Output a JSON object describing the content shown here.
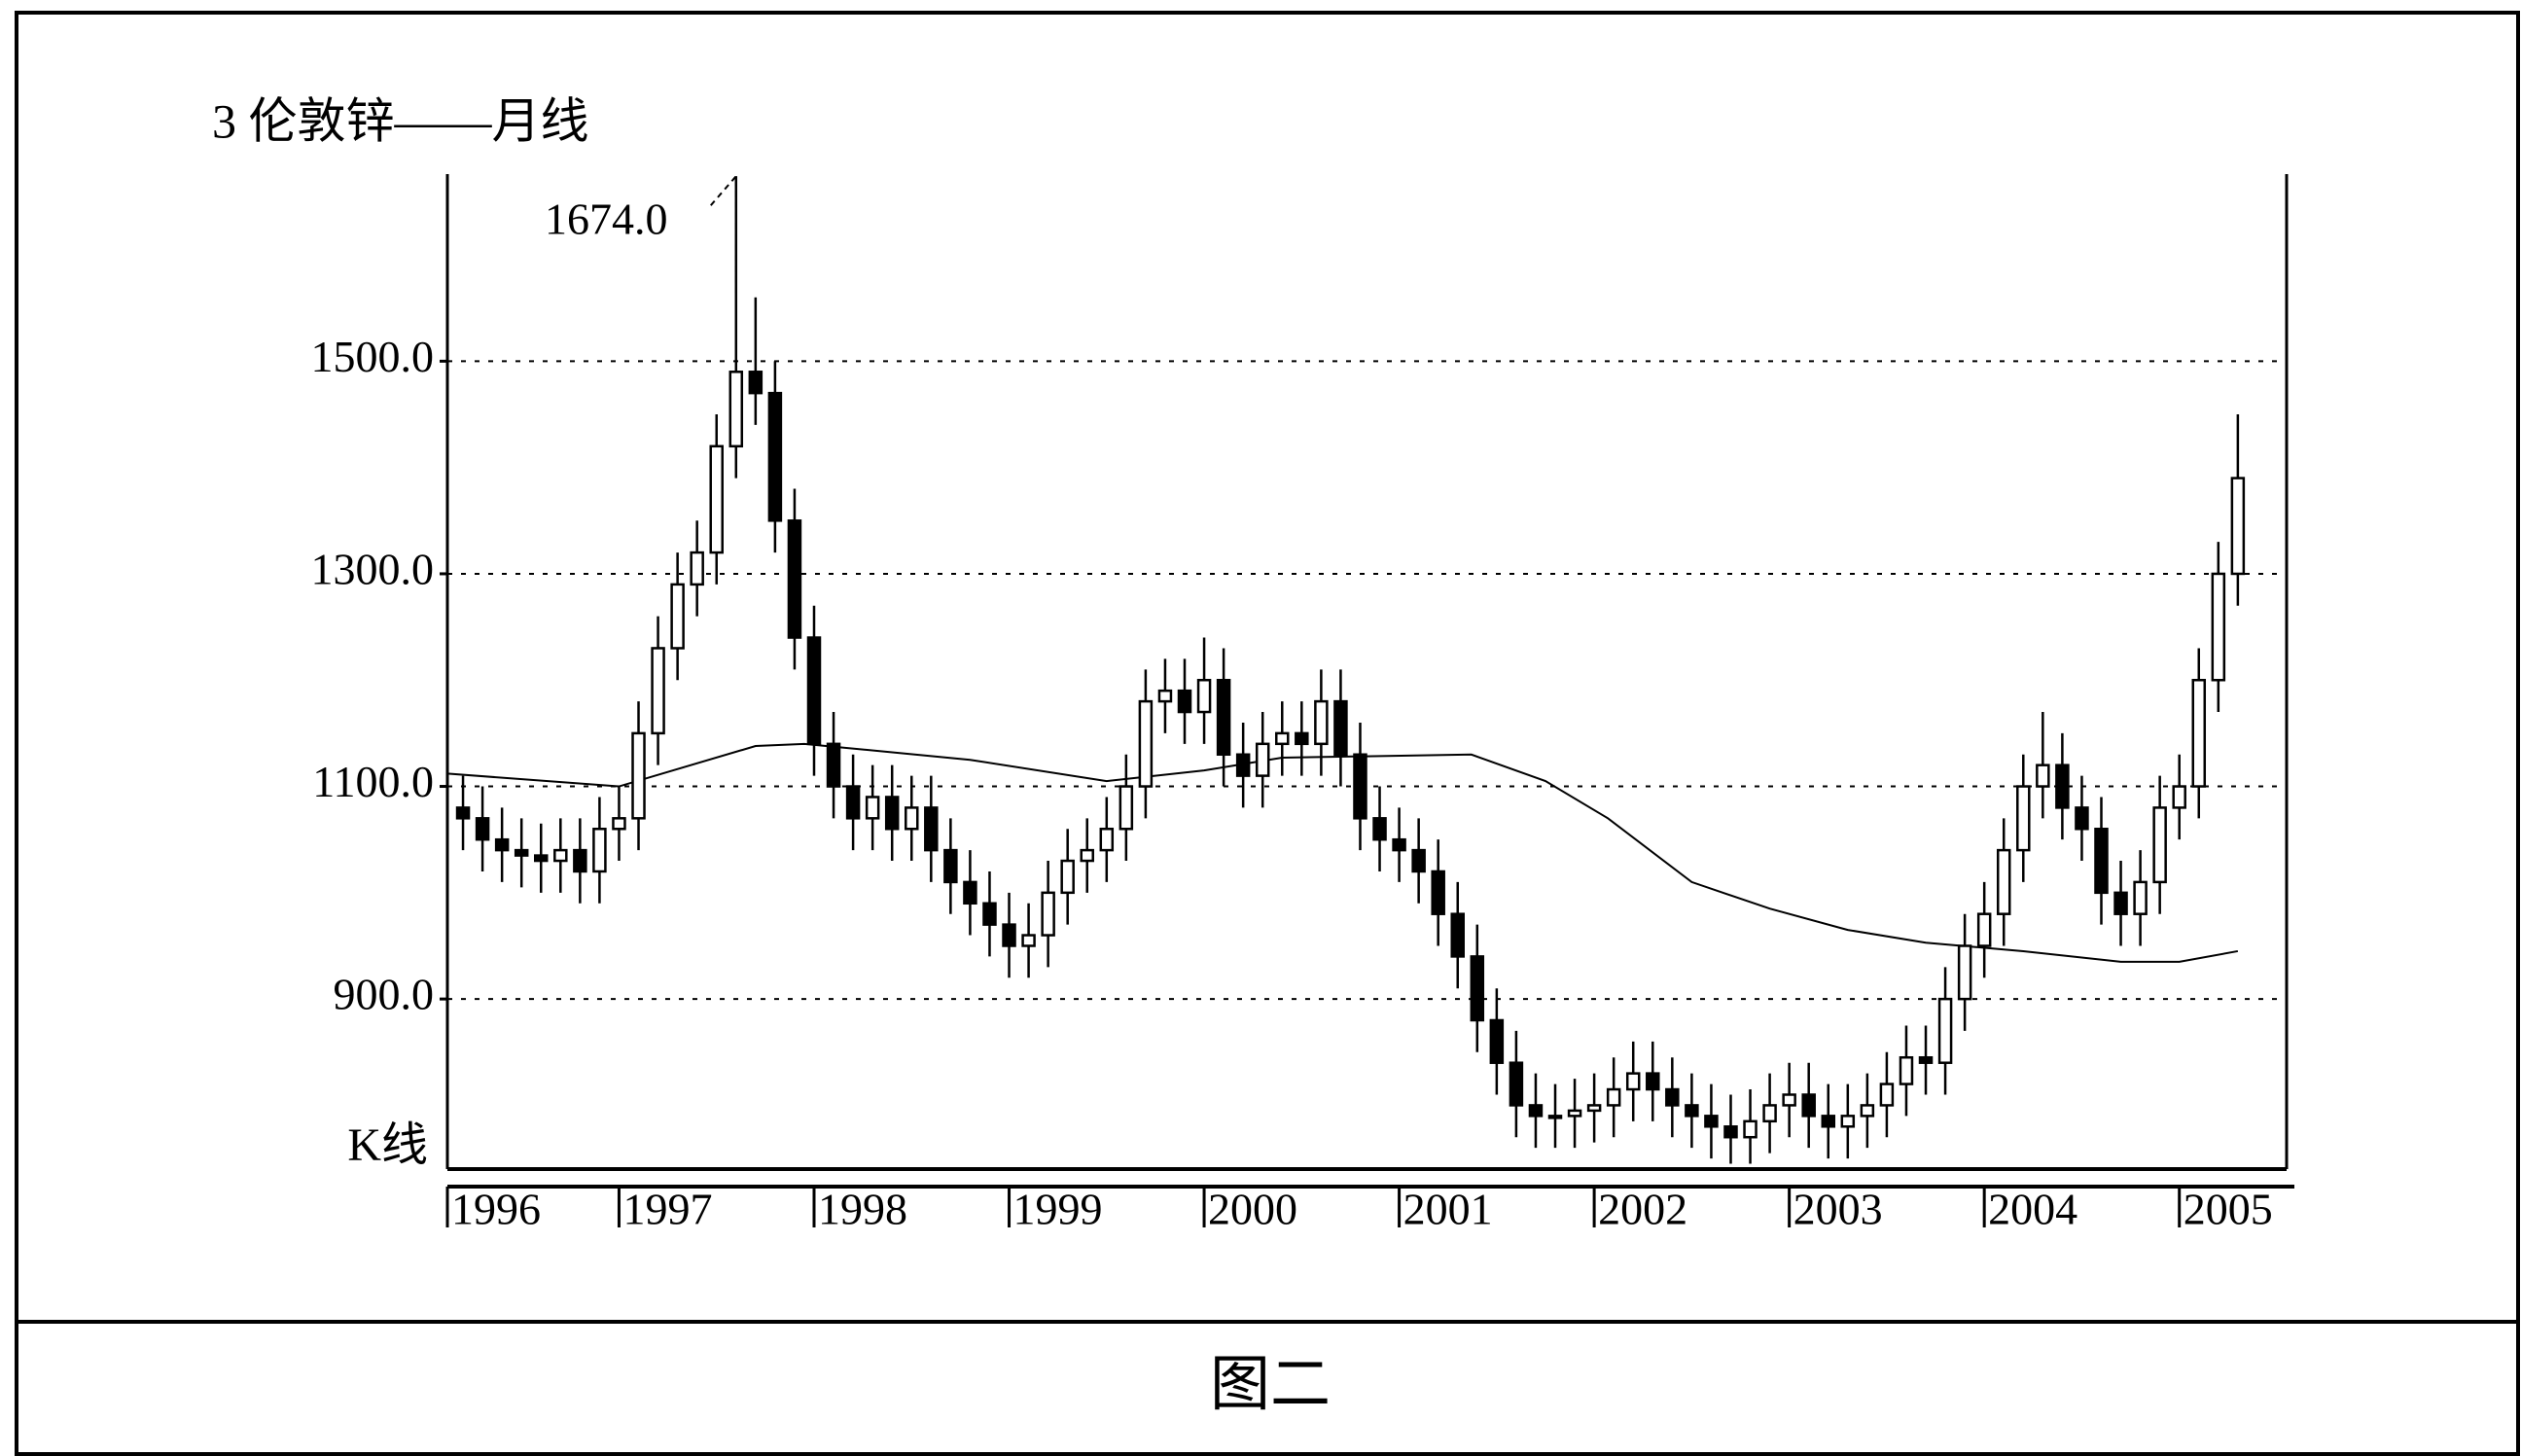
{
  "chart_data": {
    "type": "candlestick",
    "title": "3 伦敦锌——月线",
    "peak_label": "1674.0",
    "k_label": "K线",
    "xlim": [
      1996.12,
      2005.55
    ],
    "ylim": [
      740,
      1676
    ],
    "xticks": [
      {
        "value": 1996.12,
        "label": "1996"
      },
      1997,
      1998,
      1999,
      2000,
      2001,
      2002,
      2003,
      2004,
      2005
    ],
    "yticks": [
      {
        "value": 900,
        "label": "900.0"
      },
      {
        "value": 1100,
        "label": "1100.0"
      },
      {
        "value": 1300,
        "label": "1300.0"
      },
      {
        "value": 1500,
        "label": "1500.0"
      }
    ],
    "grid": true,
    "color": "#000000",
    "x": [
      1996.2,
      1996.3,
      1996.4,
      1996.5,
      1996.6,
      1996.7,
      1996.8,
      1996.9,
      1997.0,
      1997.1,
      1997.2,
      1997.3,
      1997.4,
      1997.5,
      1997.6,
      1997.7,
      1997.8,
      1997.9,
      1998.0,
      1998.1,
      1998.2,
      1998.3,
      1998.4,
      1998.5,
      1998.6,
      1998.7,
      1998.8,
      1998.9,
      1999.0,
      1999.1,
      1999.2,
      1999.3,
      1999.4,
      1999.5,
      1999.6,
      1999.7,
      1999.8,
      1999.9,
      2000.0,
      2000.1,
      2000.2,
      2000.3,
      2000.4,
      2000.5,
      2000.6,
      2000.7,
      2000.8,
      2000.9,
      2001.0,
      2001.1,
      2001.2,
      2001.3,
      2001.4,
      2001.5,
      2001.6,
      2001.7,
      2001.8,
      2001.9,
      2002.0,
      2002.1,
      2002.2,
      2002.3,
      2002.4,
      2002.5,
      2002.6,
      2002.7,
      2002.8,
      2002.9,
      2003.0,
      2003.1,
      2003.2,
      2003.3,
      2003.4,
      2003.5,
      2003.6,
      2003.7,
      2003.8,
      2003.9,
      2004.0,
      2004.1,
      2004.2,
      2004.3,
      2004.4,
      2004.5,
      2004.6,
      2004.7,
      2004.8,
      2004.9,
      2005.0,
      2005.1,
      2005.2,
      2005.3
    ],
    "open": [
      1080,
      1070,
      1050,
      1040,
      1035,
      1030,
      1040,
      1020,
      1060,
      1070,
      1150,
      1230,
      1290,
      1320,
      1420,
      1490,
      1470,
      1350,
      1240,
      1140,
      1100,
      1070,
      1090,
      1060,
      1080,
      1040,
      1010,
      990,
      970,
      950,
      960,
      1000,
      1030,
      1040,
      1060,
      1100,
      1180,
      1190,
      1170,
      1200,
      1130,
      1110,
      1140,
      1150,
      1140,
      1180,
      1130,
      1070,
      1050,
      1040,
      1020,
      980,
      940,
      880,
      840,
      800,
      790,
      790,
      795,
      800,
      815,
      830,
      815,
      800,
      790,
      780,
      770,
      785,
      800,
      810,
      790,
      780,
      790,
      800,
      820,
      845,
      840,
      900,
      950,
      980,
      1040,
      1100,
      1120,
      1080,
      1060,
      1000,
      980,
      1010,
      1080,
      1100,
      1200,
      1300
    ],
    "high": [
      1110,
      1100,
      1080,
      1070,
      1065,
      1070,
      1070,
      1090,
      1100,
      1180,
      1260,
      1320,
      1350,
      1450,
      1674,
      1560,
      1500,
      1380,
      1270,
      1170,
      1130,
      1120,
      1120,
      1110,
      1110,
      1070,
      1040,
      1020,
      1000,
      990,
      1030,
      1060,
      1070,
      1090,
      1130,
      1210,
      1220,
      1220,
      1240,
      1230,
      1160,
      1170,
      1180,
      1180,
      1210,
      1210,
      1160,
      1100,
      1080,
      1070,
      1050,
      1010,
      970,
      910,
      870,
      830,
      820,
      825,
      830,
      845,
      860,
      860,
      845,
      830,
      820,
      810,
      815,
      830,
      840,
      840,
      820,
      820,
      830,
      850,
      875,
      875,
      930,
      980,
      1010,
      1070,
      1130,
      1170,
      1150,
      1110,
      1090,
      1030,
      1040,
      1110,
      1130,
      1230,
      1330,
      1450
    ],
    "low": [
      1040,
      1020,
      1010,
      1005,
      1000,
      1000,
      990,
      990,
      1030,
      1040,
      1120,
      1200,
      1260,
      1290,
      1390,
      1440,
      1320,
      1210,
      1110,
      1070,
      1040,
      1040,
      1030,
      1030,
      1010,
      980,
      960,
      940,
      920,
      920,
      930,
      970,
      1000,
      1010,
      1030,
      1070,
      1150,
      1140,
      1140,
      1100,
      1080,
      1080,
      1110,
      1110,
      1110,
      1100,
      1040,
      1020,
      1010,
      990,
      950,
      910,
      850,
      810,
      770,
      760,
      760,
      760,
      765,
      770,
      785,
      785,
      770,
      760,
      750,
      745,
      745,
      755,
      770,
      760,
      750,
      750,
      760,
      770,
      790,
      810,
      810,
      870,
      920,
      950,
      1010,
      1070,
      1050,
      1030,
      970,
      950,
      950,
      980,
      1050,
      1070,
      1170,
      1270
    ],
    "close": [
      1070,
      1050,
      1040,
      1035,
      1030,
      1040,
      1020,
      1060,
      1070,
      1150,
      1230,
      1290,
      1320,
      1420,
      1490,
      1470,
      1350,
      1240,
      1140,
      1100,
      1070,
      1090,
      1060,
      1080,
      1040,
      1010,
      990,
      970,
      950,
      960,
      1000,
      1030,
      1040,
      1060,
      1100,
      1180,
      1190,
      1170,
      1200,
      1130,
      1110,
      1140,
      1150,
      1140,
      1180,
      1130,
      1070,
      1050,
      1040,
      1020,
      980,
      940,
      880,
      840,
      800,
      790,
      790,
      795,
      800,
      815,
      830,
      815,
      800,
      790,
      780,
      770,
      785,
      800,
      810,
      790,
      780,
      790,
      800,
      820,
      845,
      840,
      900,
      950,
      980,
      1040,
      1100,
      1120,
      1080,
      1060,
      1000,
      980,
      1010,
      1080,
      1100,
      1200,
      1300,
      1390
    ],
    "moving_average": {
      "x": [
        1996.12,
        1997.0,
        1997.7,
        1997.95,
        1998.8,
        1999.5,
        2000.0,
        2000.4,
        2001.37,
        2001.75,
        2002.07,
        2002.5,
        2002.9,
        2003.3,
        2003.7,
        2004.2,
        2004.7,
        2005.0,
        2005.3
      ],
      "values": [
        1112,
        1100,
        1138,
        1140,
        1125,
        1105,
        1115,
        1127,
        1130,
        1105,
        1070,
        1010,
        985,
        965,
        953,
        945,
        935,
        935,
        945
      ]
    }
  },
  "caption": "图二"
}
